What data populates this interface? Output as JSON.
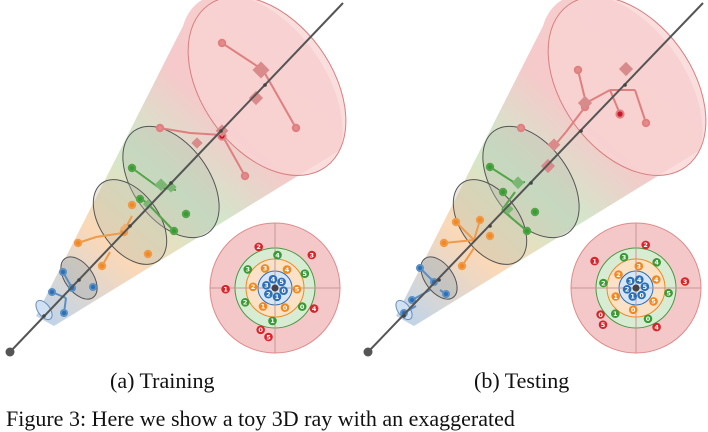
{
  "subfigures": [
    {
      "caption": "(a) Training",
      "inset_rings": {
        "blue": [
          "0",
          "1",
          "2",
          "3",
          "4",
          "5"
        ],
        "orange": [
          "0",
          "1",
          "2",
          "3",
          "4",
          "5"
        ],
        "green": [
          "0",
          "1",
          "2",
          "3",
          "4",
          "5"
        ],
        "red": [
          "0",
          "1",
          "2",
          "3",
          "4",
          "5"
        ]
      }
    },
    {
      "caption": "(b) Testing",
      "inset_rings": {
        "blue": [
          "0",
          "1",
          "2",
          "3",
          "4",
          "5"
        ],
        "orange": [
          "0",
          "1",
          "2",
          "3",
          "4",
          "5"
        ],
        "green": [
          "0",
          "1",
          "2",
          "3",
          "4",
          "5"
        ],
        "red": [
          "0",
          "1",
          "2",
          "3",
          "4",
          "5"
        ]
      }
    }
  ],
  "figure_caption": "Figure 3: Here we show a toy 3D ray with an exaggerated",
  "colors": {
    "blue": "#2c6fb5",
    "orange": "#ef8a22",
    "green": "#3a9a35",
    "red": "#d6262b",
    "ray": "#555555"
  }
}
